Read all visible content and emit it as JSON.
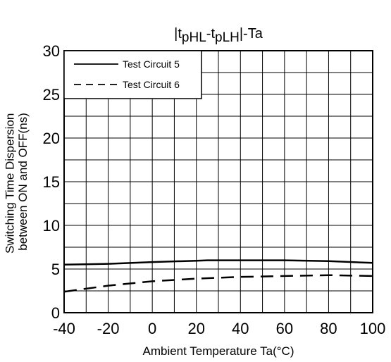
{
  "chart_data": {
    "type": "line",
    "title": {
      "prefix": "|t",
      "sub1": "pHL",
      "mid": "-t",
      "sub2": "pLH",
      "suffix": "|-Ta"
    },
    "xlabel": "Ambient Temperature Ta(°C)",
    "ylabel_lines": [
      "Switching Time Dispersion",
      "between ON and OFF(ns)"
    ],
    "xlim": [
      -40,
      100
    ],
    "ylim": [
      0,
      30
    ],
    "x_ticks": [
      -40,
      -20,
      0,
      20,
      40,
      60,
      80,
      100
    ],
    "y_ticks": [
      0,
      5,
      10,
      15,
      20,
      25,
      30
    ],
    "grid": true,
    "legend_position": "top-left",
    "series": [
      {
        "name": "Test Circuit 5",
        "line_style": "solid",
        "color": "#000000",
        "x": [
          -40,
          -20,
          0,
          20,
          25,
          40,
          60,
          80,
          100
        ],
        "y": [
          5.5,
          5.6,
          5.8,
          5.95,
          6.0,
          6.0,
          6.0,
          5.9,
          5.7
        ]
      },
      {
        "name": "Test Circuit 6",
        "line_style": "dashed",
        "color": "#000000",
        "x": [
          -40,
          -20,
          0,
          20,
          40,
          60,
          80,
          100
        ],
        "y": [
          2.4,
          3.1,
          3.6,
          3.9,
          4.1,
          4.2,
          4.3,
          4.2
        ]
      }
    ]
  }
}
